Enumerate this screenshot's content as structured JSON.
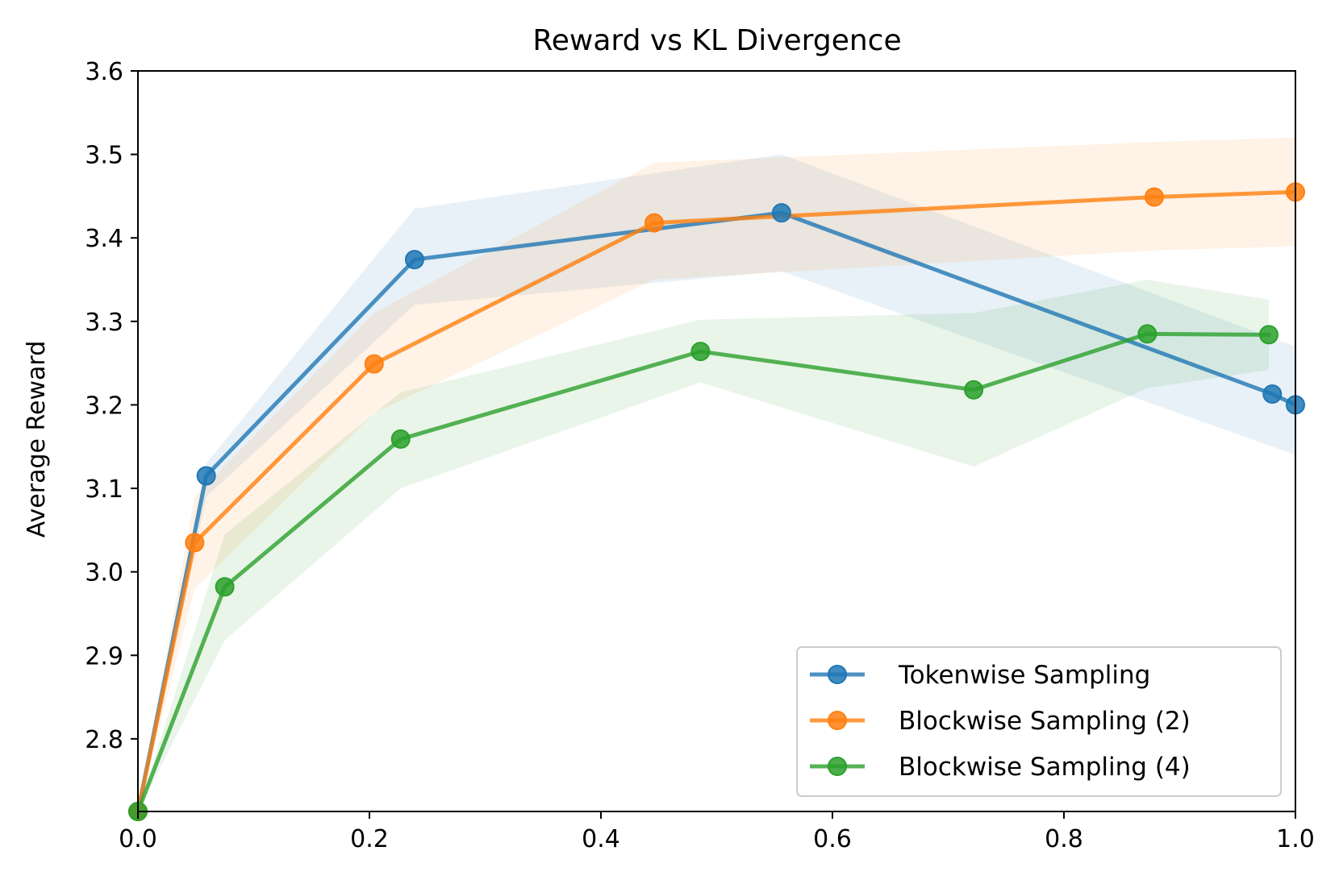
{
  "chart_data": {
    "type": "line",
    "title": "Reward vs KL Divergence",
    "xlabel": "",
    "ylabel": "Average Reward",
    "xlim": [
      0.0,
      1.0
    ],
    "ylim": [
      2.713,
      3.6
    ],
    "xticks": [
      "0.0",
      "0.2",
      "0.4",
      "0.6",
      "0.8",
      "1.0"
    ],
    "xtick_values": [
      0.0,
      0.2,
      0.4,
      0.6,
      0.8,
      1.0
    ],
    "yticks": [
      "2.8",
      "2.9",
      "3.0",
      "3.1",
      "3.2",
      "3.3",
      "3.4",
      "3.5",
      "3.6"
    ],
    "ytick_values": [
      2.8,
      2.9,
      3.0,
      3.1,
      3.2,
      3.3,
      3.4,
      3.5,
      3.6
    ],
    "grid": false,
    "legend_position": "lower-right",
    "series": [
      {
        "name": "Tokenwise Sampling",
        "color": "#1f77b4",
        "x": [
          0.0,
          0.059,
          0.239,
          0.556,
          0.98,
          1.0
        ],
        "y": [
          2.713,
          3.115,
          3.374,
          3.43,
          3.213,
          3.2
        ],
        "lower": [
          2.713,
          3.09,
          3.32,
          3.36,
          3.15,
          3.14
        ],
        "upper": [
          2.713,
          3.13,
          3.435,
          3.5,
          3.28,
          3.27
        ]
      },
      {
        "name": "Blockwise Sampling (2)",
        "color": "#ff7f0e",
        "x": [
          0.0,
          0.049,
          0.204,
          0.446,
          0.878,
          1.0
        ],
        "y": [
          2.713,
          3.035,
          3.249,
          3.418,
          3.449,
          3.455
        ],
        "lower": [
          2.713,
          2.98,
          3.19,
          3.35,
          3.385,
          3.39
        ],
        "upper": [
          2.713,
          3.09,
          3.31,
          3.49,
          3.515,
          3.52
        ]
      },
      {
        "name": "Blockwise Sampling (4)",
        "color": "#2ca02c",
        "x": [
          0.0,
          0.075,
          0.227,
          0.486,
          0.722,
          0.872,
          0.977
        ],
        "y": [
          2.713,
          2.982,
          3.159,
          3.264,
          3.218,
          3.285,
          3.284
        ],
        "lower": [
          2.713,
          2.918,
          3.1,
          3.227,
          3.126,
          3.22,
          3.242
        ],
        "upper": [
          2.713,
          3.045,
          3.215,
          3.302,
          3.31,
          3.35,
          3.326
        ]
      }
    ]
  }
}
